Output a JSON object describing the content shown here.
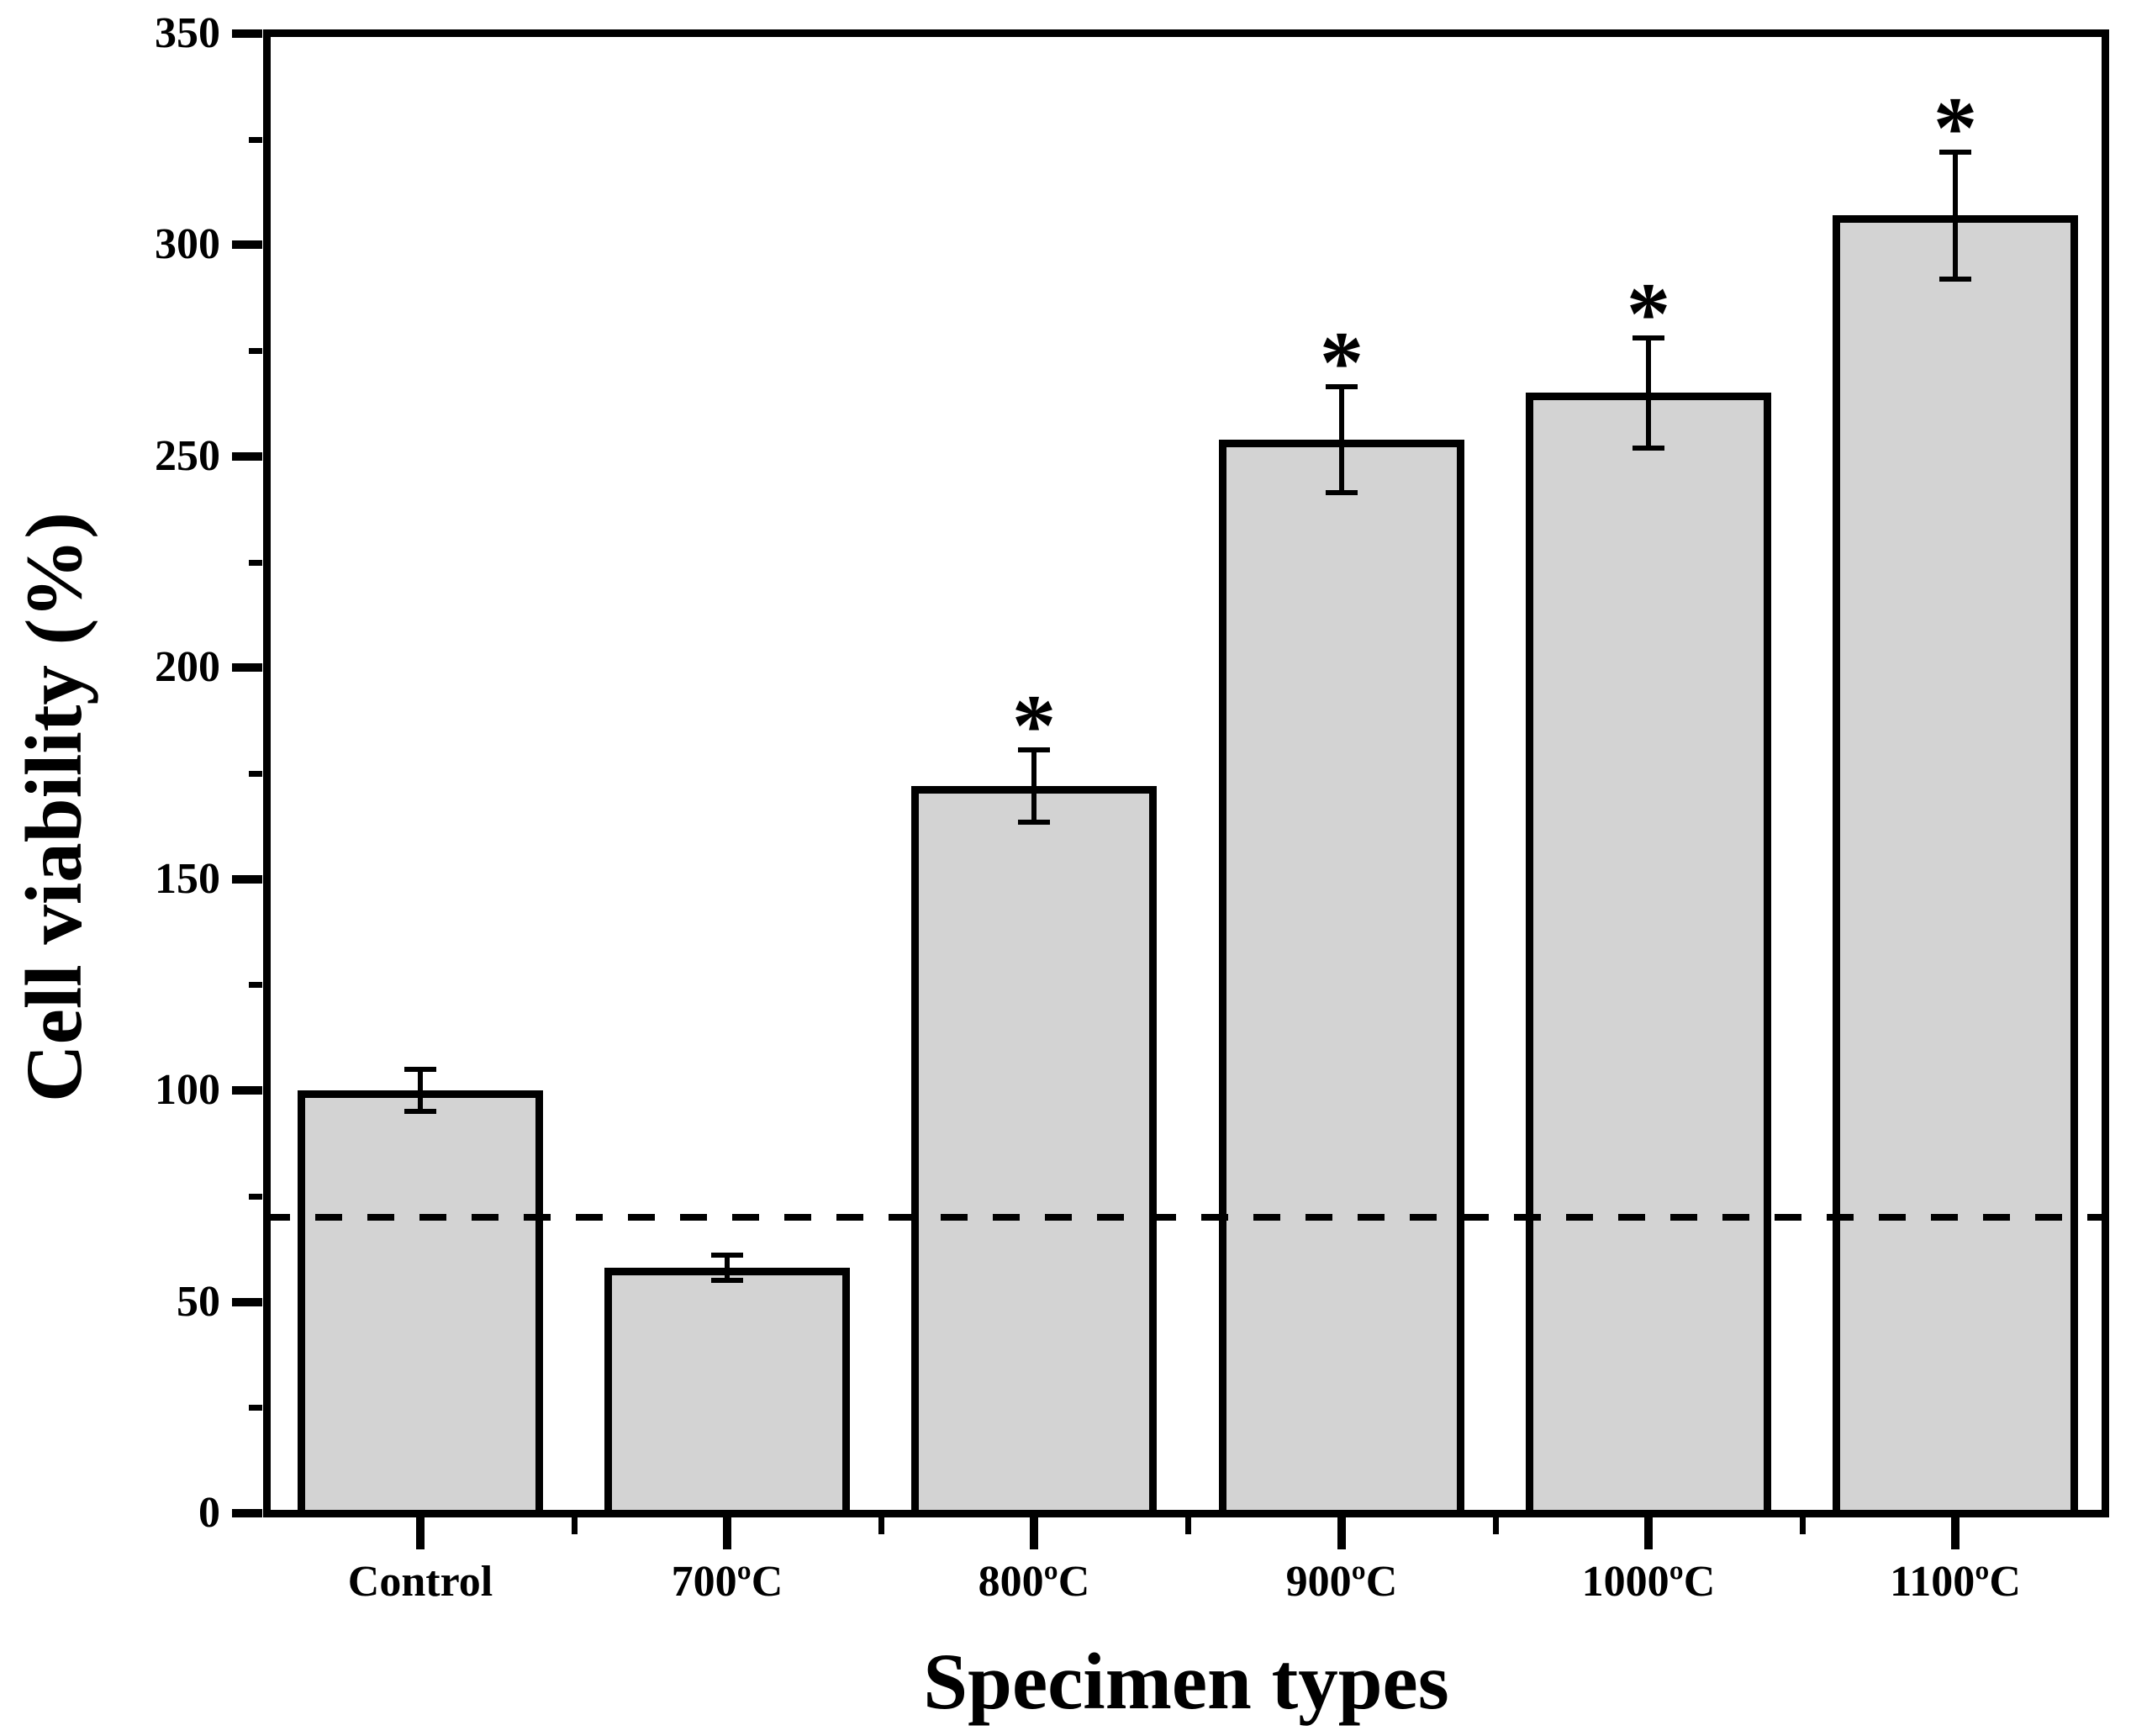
{
  "chart_data": {
    "type": "bar",
    "title": "",
    "xlabel": "Specimen types",
    "ylabel": "Cell viability (%)",
    "categories": [
      "Control",
      "700ºC",
      "800ºC",
      "900ºC",
      "1000ºC",
      "1100ºC"
    ],
    "values": [
      100,
      58,
      172,
      254,
      265,
      307
    ],
    "errors": [
      5,
      3,
      8.5,
      12.5,
      13,
      15
    ],
    "significance": [
      "",
      "",
      "*",
      "*",
      "*",
      "*"
    ],
    "reference_line": {
      "value": 70,
      "style": "dashed"
    },
    "ylim": [
      0,
      350
    ],
    "y_major_ticks": [
      0,
      50,
      100,
      150,
      200,
      250,
      300,
      350
    ],
    "y_tick_labels": [
      "0",
      "50",
      "100",
      "150",
      "200",
      "250",
      "300",
      "350"
    ],
    "y_minor_ticks": [
      25,
      75,
      125,
      175,
      225,
      275,
      325
    ],
    "grid": false,
    "legend": null,
    "colors": {
      "bar_fill": "#d3d3d3",
      "bar_stroke": "#000000",
      "axis": "#000000",
      "background": "#ffffff",
      "text": "#000000"
    }
  }
}
